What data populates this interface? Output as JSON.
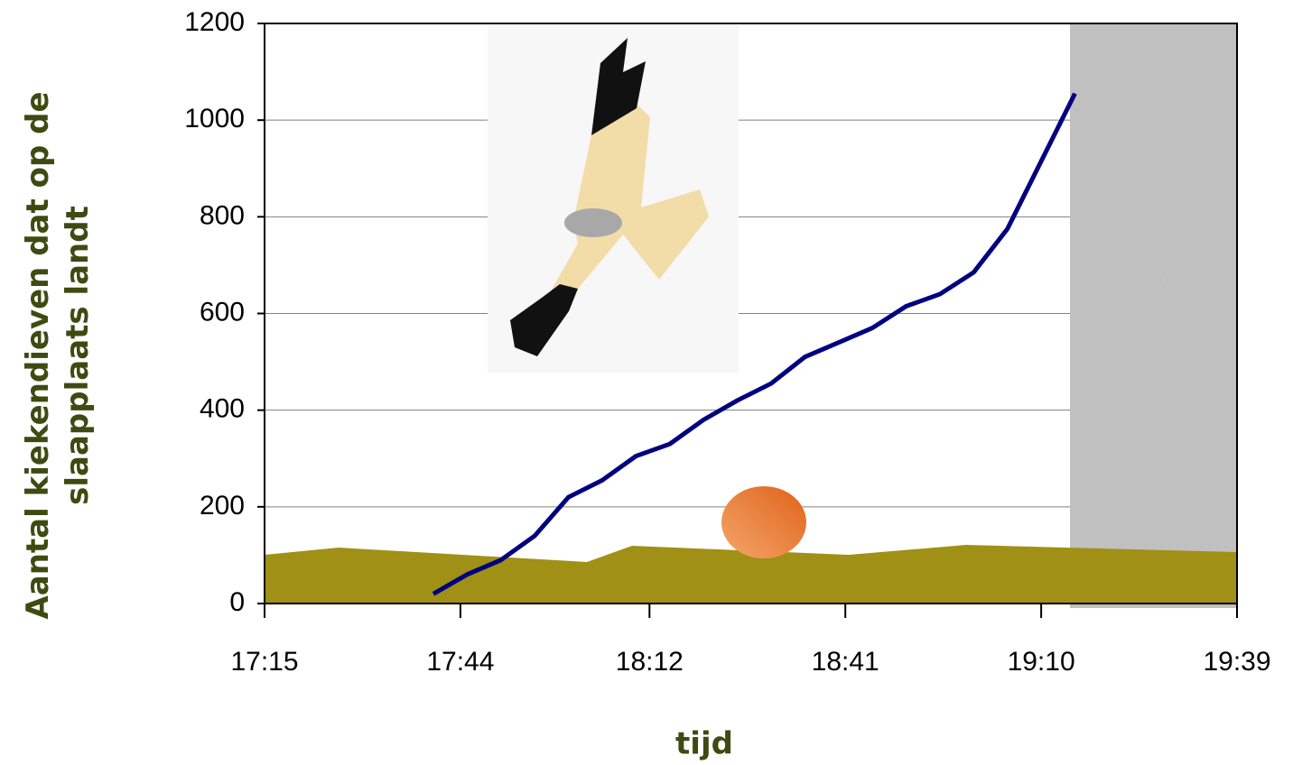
{
  "chart_data": {
    "type": "line",
    "x_label": "tijd",
    "y_label": "Aantal kiekendieven dat op de slaapplaats landt",
    "x": [
      1060,
      1065,
      1070,
      1075,
      1080,
      1085,
      1090,
      1095,
      1100,
      1105,
      1110,
      1115,
      1120,
      1125,
      1130,
      1135,
      1140,
      1145,
      1155
    ],
    "series": [
      {
        "name": "kiekendieven",
        "color": "#000080",
        "values": [
          20,
          60,
          90,
          140,
          220,
          255,
          305,
          330,
          380,
          420,
          455,
          510,
          540,
          570,
          615,
          640,
          685,
          775,
          1055
        ]
      }
    ],
    "xlim": [
      1035,
      1179
    ],
    "xticks": [
      {
        "value": 1035,
        "label": "17:15"
      },
      {
        "value": 1064,
        "label": "17:44"
      },
      {
        "value": 1092,
        "label": "18:12"
      },
      {
        "value": 1121,
        "label": "18:41"
      },
      {
        "value": 1150,
        "label": "19:10"
      },
      {
        "value": 1179,
        "label": "19:39"
      }
    ],
    "ylim": [
      0,
      1200
    ],
    "yticks": [
      0,
      200,
      400,
      600,
      800,
      1000,
      1200
    ],
    "grid": true
  }
}
